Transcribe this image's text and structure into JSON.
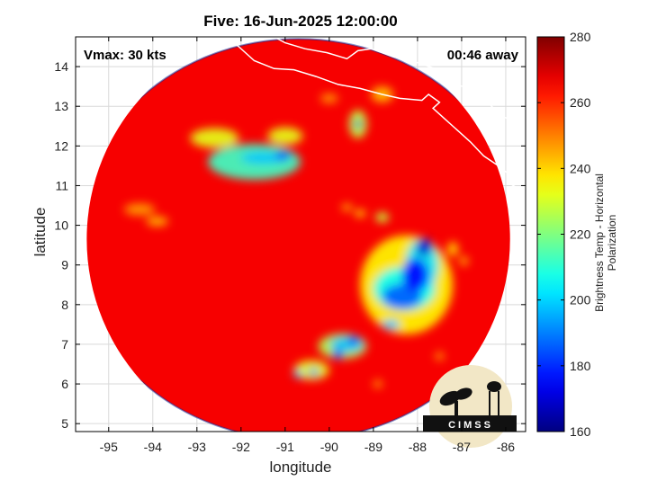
{
  "chart_data": {
    "type": "heatmap",
    "title": "Five: 16-Jun-2025 12:00:00",
    "xlabel": "longitude",
    "ylabel": "latitude",
    "xlim": [
      -95.75,
      -85.55
    ],
    "ylim": [
      4.8,
      14.75
    ],
    "xticks": [
      -95,
      -94,
      -93,
      -92,
      -91,
      -90,
      -89,
      -88,
      -87,
      -86
    ],
    "yticks": [
      5,
      6,
      7,
      8,
      9,
      10,
      11,
      12,
      13,
      14
    ],
    "grid": true,
    "colorbar": {
      "label": "Brightness Temp - Horizontal Polarization",
      "range": [
        160,
        280
      ],
      "ticks": [
        160,
        180,
        200,
        220,
        240,
        260,
        280
      ],
      "colormap": "jet"
    },
    "swath": {
      "center_lon": -90.7,
      "center_lat": 9.65,
      "radius_deg": 5.05
    },
    "annotations": [
      {
        "text": "Vmax: 30 kts",
        "position": "top-left"
      },
      {
        "text": "00:46 away",
        "position": "top-right"
      }
    ],
    "background_temp": 266,
    "features": [
      {
        "lon": -91.7,
        "lat": 11.6,
        "rx": 1.05,
        "ry": 0.45,
        "t": 212
      },
      {
        "lon": -92.6,
        "lat": 12.2,
        "rx": 0.55,
        "ry": 0.25,
        "t": 232
      },
      {
        "lon": -91.0,
        "lat": 12.25,
        "rx": 0.4,
        "ry": 0.22,
        "t": 232
      },
      {
        "lon": -91.5,
        "lat": 11.7,
        "rx": 0.5,
        "ry": 0.15,
        "t": 198
      },
      {
        "lon": -91.05,
        "lat": 11.75,
        "rx": 0.18,
        "ry": 0.12,
        "t": 184
      },
      {
        "lon": -89.35,
        "lat": 12.55,
        "rx": 0.2,
        "ry": 0.35,
        "t": 228
      },
      {
        "lon": -89.35,
        "lat": 12.55,
        "rx": 0.08,
        "ry": 0.12,
        "t": 168
      },
      {
        "lon": -88.8,
        "lat": 10.2,
        "rx": 0.08,
        "ry": 0.08,
        "t": 192
      },
      {
        "lon": -89.3,
        "lat": 10.3,
        "rx": 0.12,
        "ry": 0.08,
        "t": 238
      },
      {
        "lon": -89.6,
        "lat": 10.45,
        "rx": 0.12,
        "ry": 0.08,
        "t": 244
      },
      {
        "lon": -94.3,
        "lat": 10.4,
        "rx": 0.35,
        "ry": 0.15,
        "t": 246
      },
      {
        "lon": -93.9,
        "lat": 10.1,
        "rx": 0.25,
        "ry": 0.12,
        "t": 244
      },
      {
        "lon": -88.25,
        "lat": 8.5,
        "rx": 1.05,
        "ry": 1.25,
        "t": 236
      },
      {
        "lon": -88.3,
        "lat": 8.4,
        "rx": 0.7,
        "ry": 0.55,
        "t": 206
      },
      {
        "lon": -87.9,
        "lat": 9.0,
        "rx": 0.38,
        "ry": 0.65,
        "t": 202
      },
      {
        "lon": -88.35,
        "lat": 8.2,
        "rx": 0.45,
        "ry": 0.32,
        "t": 186
      },
      {
        "lon": -88.05,
        "lat": 8.75,
        "rx": 0.3,
        "ry": 0.42,
        "t": 176
      },
      {
        "lon": -87.85,
        "lat": 9.45,
        "rx": 0.18,
        "ry": 0.22,
        "t": 170
      },
      {
        "lon": -88.6,
        "lat": 7.5,
        "rx": 0.2,
        "ry": 0.12,
        "t": 198
      },
      {
        "lon": -89.7,
        "lat": 6.95,
        "rx": 0.55,
        "ry": 0.32,
        "t": 226
      },
      {
        "lon": -89.6,
        "lat": 7.0,
        "rx": 0.38,
        "ry": 0.2,
        "t": 198
      },
      {
        "lon": -89.45,
        "lat": 7.1,
        "rx": 0.12,
        "ry": 0.12,
        "t": 182
      },
      {
        "lon": -89.8,
        "lat": 6.75,
        "rx": 0.12,
        "ry": 0.12,
        "t": 182
      },
      {
        "lon": -90.4,
        "lat": 6.35,
        "rx": 0.4,
        "ry": 0.25,
        "t": 232
      },
      {
        "lon": -90.35,
        "lat": 6.3,
        "rx": 0.1,
        "ry": 0.1,
        "t": 192
      },
      {
        "lon": -90.7,
        "lat": 6.25,
        "rx": 0.1,
        "ry": 0.1,
        "t": 200
      },
      {
        "lon": -87.2,
        "lat": 9.4,
        "rx": 0.12,
        "ry": 0.18,
        "t": 240
      },
      {
        "lon": -86.95,
        "lat": 9.1,
        "rx": 0.1,
        "ry": 0.12,
        "t": 244
      },
      {
        "lon": -88.9,
        "lat": 6.0,
        "rx": 0.1,
        "ry": 0.1,
        "t": 246
      },
      {
        "lon": -87.5,
        "lat": 6.7,
        "rx": 0.1,
        "ry": 0.1,
        "t": 246
      },
      {
        "lon": -88.8,
        "lat": 13.3,
        "rx": 0.25,
        "ry": 0.2,
        "t": 244
      },
      {
        "lon": -90.0,
        "lat": 13.2,
        "rx": 0.2,
        "ry": 0.12,
        "t": 248
      },
      {
        "lon": -95.3,
        "lat": 7.0,
        "rx": 0.1,
        "ry": 0.1,
        "t": 248
      },
      {
        "lon": -88.8,
        "lat": 10.2,
        "rx": 0.15,
        "ry": 0.12,
        "t": 228
      }
    ],
    "coastline": [
      [
        [
          -92.3,
          14.75
        ],
        [
          -92.05,
          14.5
        ],
        [
          -91.7,
          14.15
        ],
        [
          -91.25,
          13.95
        ],
        [
          -90.8,
          13.92
        ],
        [
          -90.3,
          13.75
        ],
        [
          -89.8,
          13.55
        ],
        [
          -89.3,
          13.45
        ],
        [
          -88.8,
          13.3
        ],
        [
          -88.4,
          13.2
        ],
        [
          -87.9,
          13.15
        ],
        [
          -87.75,
          13.3
        ],
        [
          -87.5,
          13.1
        ],
        [
          -87.65,
          12.95
        ],
        [
          -87.4,
          12.7
        ],
        [
          -87.15,
          12.45
        ],
        [
          -86.8,
          12.1
        ],
        [
          -86.5,
          11.75
        ],
        [
          -86.1,
          11.45
        ],
        [
          -85.85,
          11.2
        ],
        [
          -85.75,
          11.05
        ],
        [
          -85.9,
          10.95
        ],
        [
          -85.75,
          10.75
        ],
        [
          -85.8,
          10.5
        ],
        [
          -85.65,
          10.25
        ],
        [
          -85.55,
          10.0
        ]
      ],
      [
        [
          -91.25,
          14.75
        ],
        [
          -91.0,
          14.6
        ],
        [
          -90.55,
          14.45
        ],
        [
          -90.05,
          14.35
        ],
        [
          -89.6,
          14.2
        ],
        [
          -89.35,
          14.4
        ],
        [
          -89.05,
          14.45
        ],
        [
          -88.55,
          14.25
        ],
        [
          -88.0,
          14.1
        ],
        [
          -87.6,
          13.95
        ],
        [
          -87.45,
          13.65
        ],
        [
          -87.15,
          13.55
        ],
        [
          -86.8,
          13.45
        ],
        [
          -86.45,
          13.15
        ],
        [
          -86.1,
          12.75
        ],
        [
          -85.6,
          12.55
        ]
      ]
    ]
  }
}
